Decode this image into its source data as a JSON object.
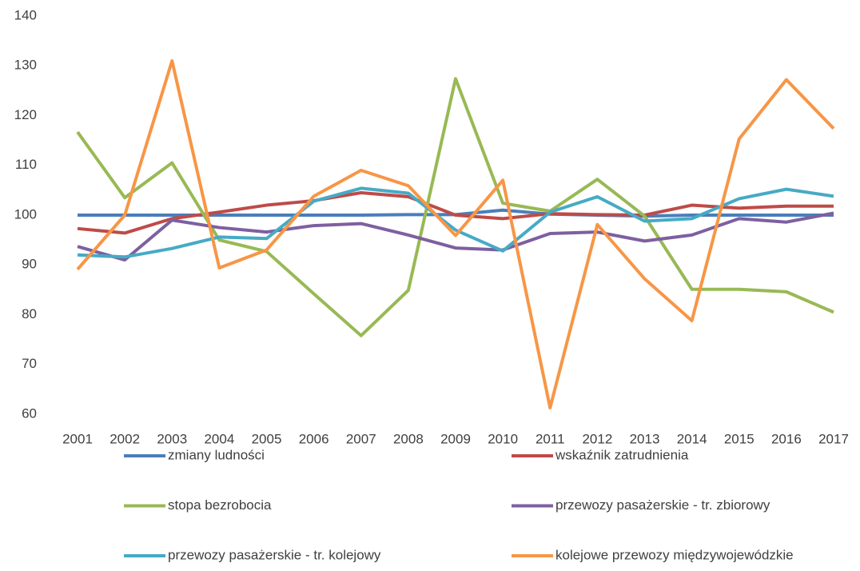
{
  "chart_data": {
    "type": "line",
    "x": [
      "2001",
      "2002",
      "2003",
      "2004",
      "2005",
      "2006",
      "2007",
      "2008",
      "2009",
      "2010",
      "2011",
      "2012",
      "2013",
      "2014",
      "2015",
      "2016",
      "2017"
    ],
    "series": [
      {
        "name": "zmiany ludności",
        "color": "#4a7ebb",
        "values": [
          100,
          100,
          100,
          100,
          100,
          100,
          100,
          100.1,
          100.1,
          101,
          100.2,
          100,
          99.8,
          100,
          100,
          100,
          100
        ]
      },
      {
        "name": "wskaźnik zatrudnienia",
        "color": "#be4b48",
        "values": [
          97.3,
          96.4,
          99.3,
          100.6,
          102,
          102.9,
          104.5,
          103.7,
          100,
          99.3,
          100.3,
          100.1,
          100,
          102,
          101.4,
          101.8,
          101.8
        ]
      },
      {
        "name": "stopa bezrobocia",
        "color": "#98b954",
        "values": [
          116.7,
          103.5,
          110.5,
          95,
          92.7,
          84.2,
          75.8,
          84.9,
          127.4,
          102.4,
          100.8,
          107.2,
          99.8,
          85.1,
          85.1,
          84.6,
          80.5
        ]
      },
      {
        "name": "przewozy pasażerskie - tr. zbiorowy",
        "color": "#7d60a0",
        "values": [
          93.7,
          91,
          99,
          97.5,
          96.6,
          97.9,
          98.3,
          96,
          93.4,
          93,
          96.3,
          96.6,
          94.8,
          96,
          99.3,
          98.6,
          100.4
        ]
      },
      {
        "name": "przewozy pasażerskie - tr. kolejowy",
        "color": "#46aac5",
        "values": [
          92,
          91.6,
          93.3,
          95.6,
          95.3,
          102.8,
          105.4,
          104.4,
          97,
          92.8,
          100.6,
          103.7,
          98.8,
          99.3,
          103.3,
          105.2,
          103.8
        ]
      },
      {
        "name": "kolejowe przewozy międzywojewódzkie",
        "color": "#f79646",
        "values": [
          89.1,
          100,
          131,
          89.4,
          93,
          103.8,
          109,
          105.9,
          95.9,
          107,
          61.3,
          98.1,
          87.2,
          78.8,
          115.3,
          127.2,
          117.4
        ]
      }
    ],
    "ylim": [
      60,
      140
    ],
    "yticks": [
      60,
      70,
      80,
      90,
      100,
      110,
      120,
      130,
      140
    ],
    "grid": false,
    "legend": "bottom"
  }
}
